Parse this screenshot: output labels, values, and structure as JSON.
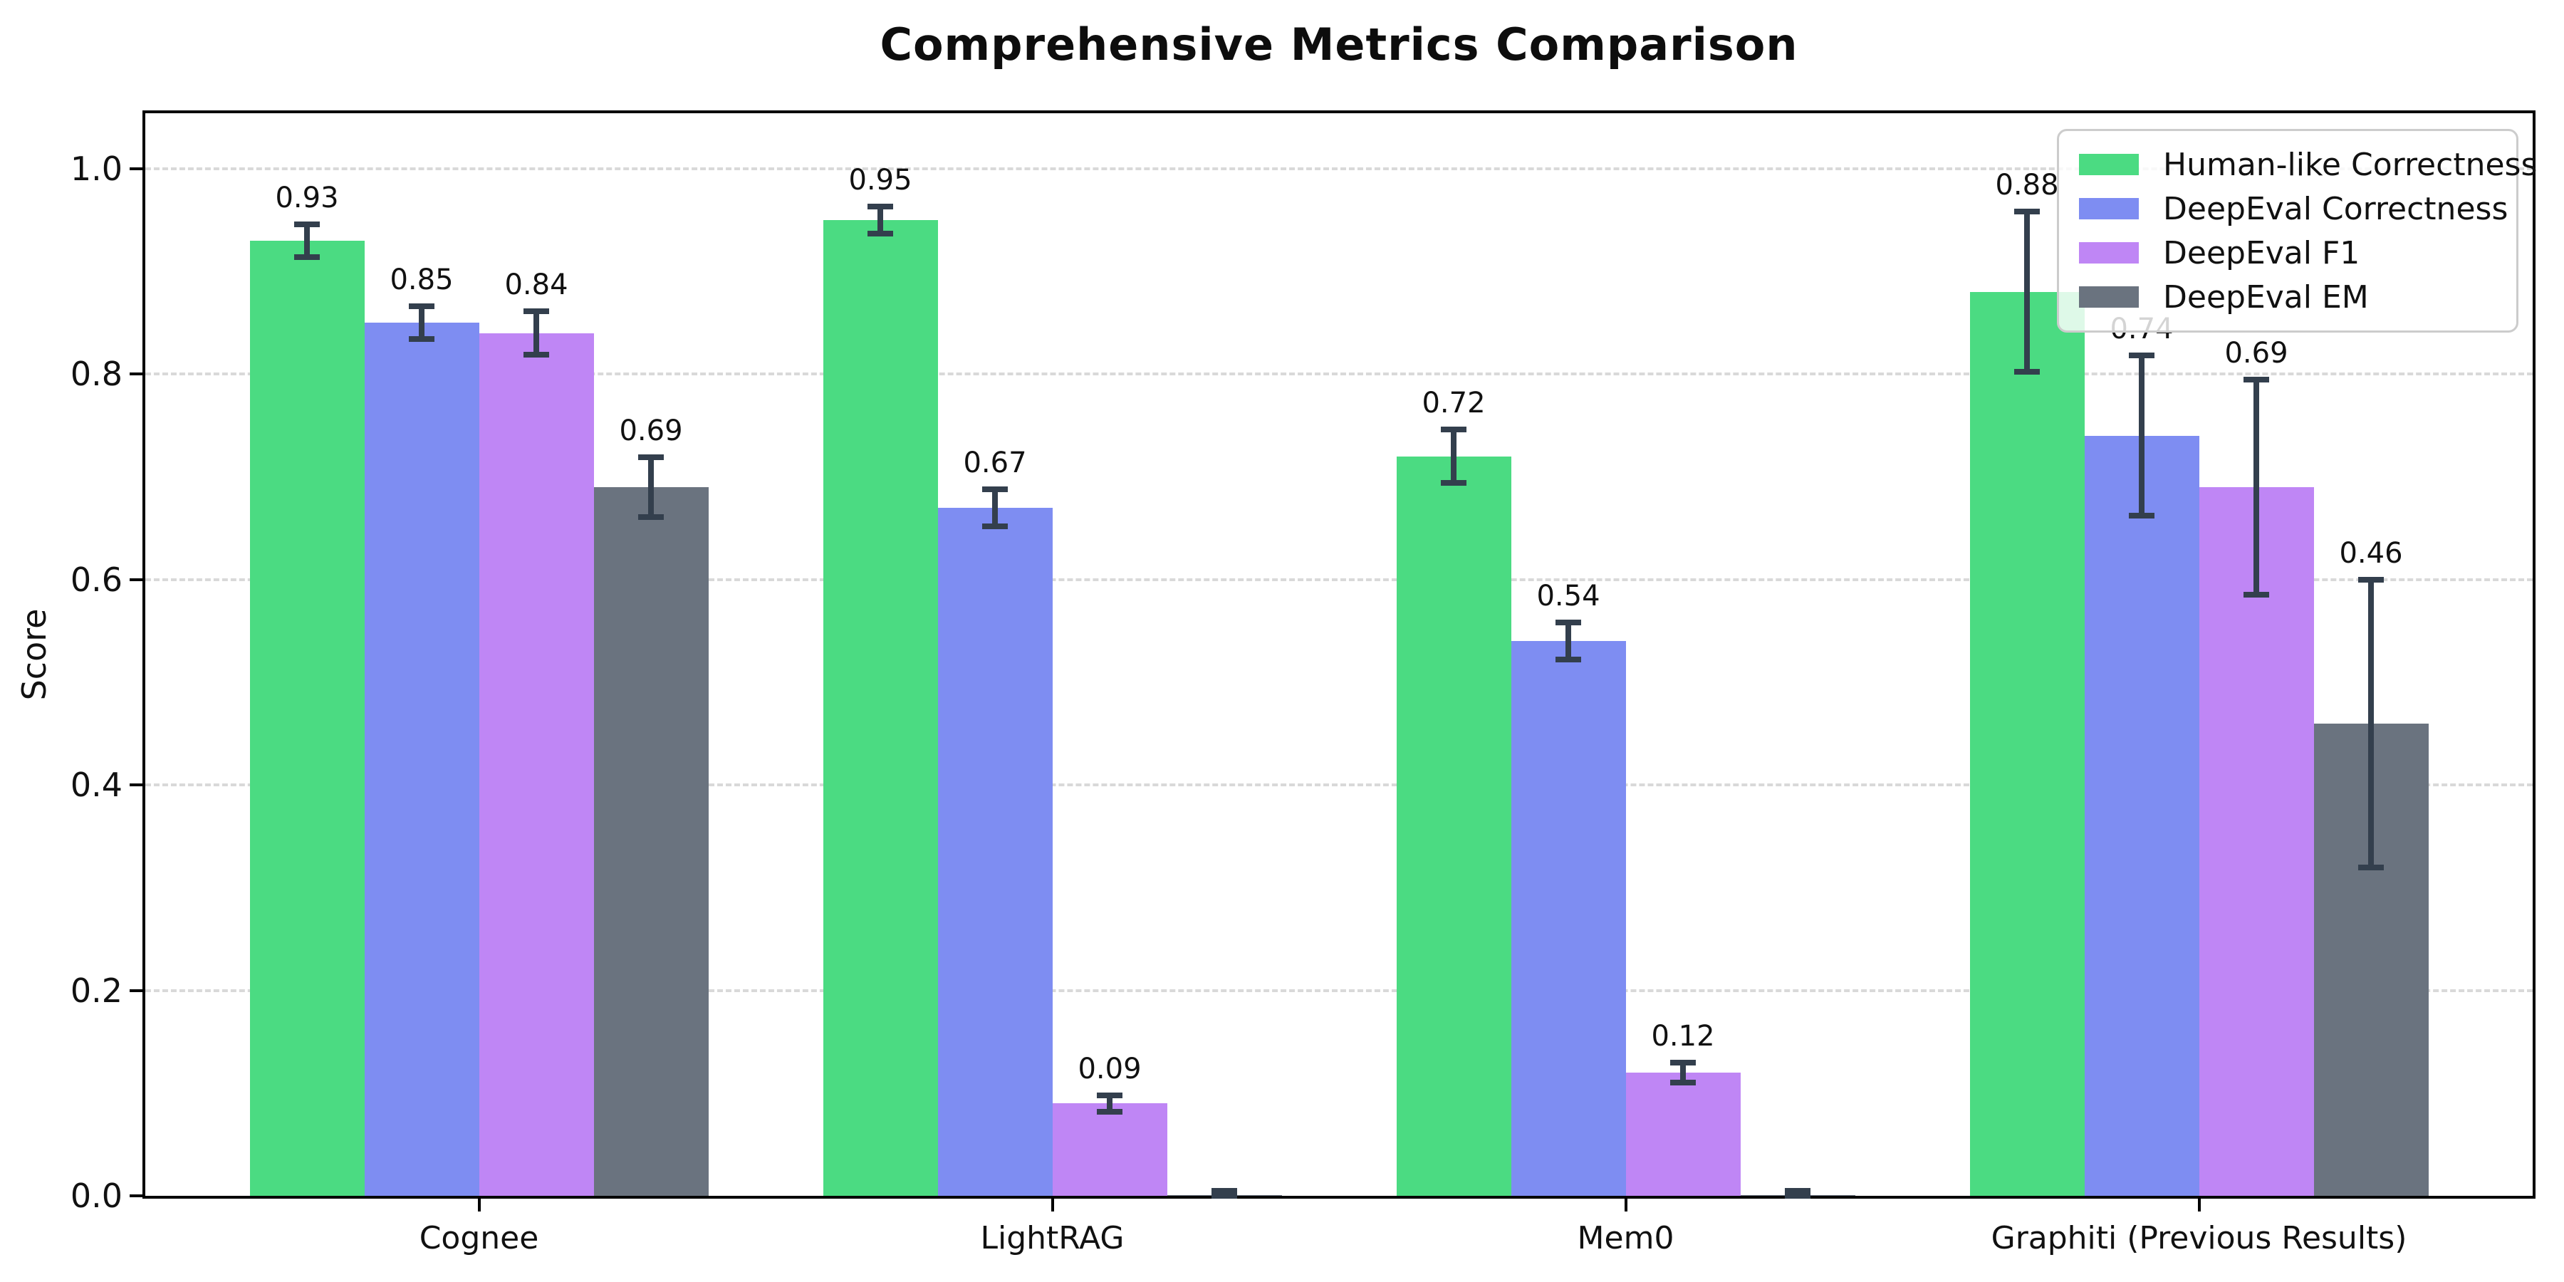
{
  "chart_data": {
    "type": "bar",
    "title": "Comprehensive Metrics Comparison",
    "ylabel": "Score",
    "xlabel": "",
    "categories": [
      "Cognee",
      "LightRAG",
      "Mem0",
      "Graphiti (Previous Results)"
    ],
    "ylim": [
      0.0,
      1.054
    ],
    "yticks": [
      {
        "v": 0.0,
        "label": "0.0"
      },
      {
        "v": 0.2,
        "label": "0.2"
      },
      {
        "v": 0.4,
        "label": "0.4"
      },
      {
        "v": 0.6,
        "label": "0.6"
      },
      {
        "v": 0.8,
        "label": "0.8"
      },
      {
        "v": 1.0,
        "label": "1.0"
      }
    ],
    "grid": "dashed-horizontal",
    "legend_position": "upper-right",
    "error_bar_color": "#333f4d",
    "gridline_color": "#d9d9d9",
    "series": [
      {
        "name": "Human-like Correctness",
        "color": "#4bdb82",
        "values": [
          0.93,
          0.95,
          0.72,
          0.88
        ],
        "errors": [
          0.016,
          0.013,
          0.026,
          0.078
        ],
        "labels": [
          "0.93",
          "0.95",
          "0.72",
          "0.88"
        ]
      },
      {
        "name": "DeepEval Correctness",
        "color": "#7e8df2",
        "values": [
          0.85,
          0.67,
          0.54,
          0.74
        ],
        "errors": [
          0.016,
          0.018,
          0.018,
          0.078
        ],
        "labels": [
          "0.85",
          "0.67",
          "0.54",
          "0.74"
        ]
      },
      {
        "name": "DeepEval F1",
        "color": "#bf86f5",
        "values": [
          0.84,
          0.09,
          0.12,
          0.69
        ],
        "errors": [
          0.021,
          0.008,
          0.01,
          0.105
        ],
        "labels": [
          "0.84",
          "0.09",
          "0.12",
          "0.69"
        ]
      },
      {
        "name": "DeepEval EM",
        "color": "#6a737f",
        "values": [
          0.69,
          0.001,
          0.001,
          0.46
        ],
        "errors": [
          0.029,
          0.004,
          0.004,
          0.14
        ],
        "labels": [
          "0.69",
          null,
          null,
          "0.46"
        ]
      }
    ]
  }
}
